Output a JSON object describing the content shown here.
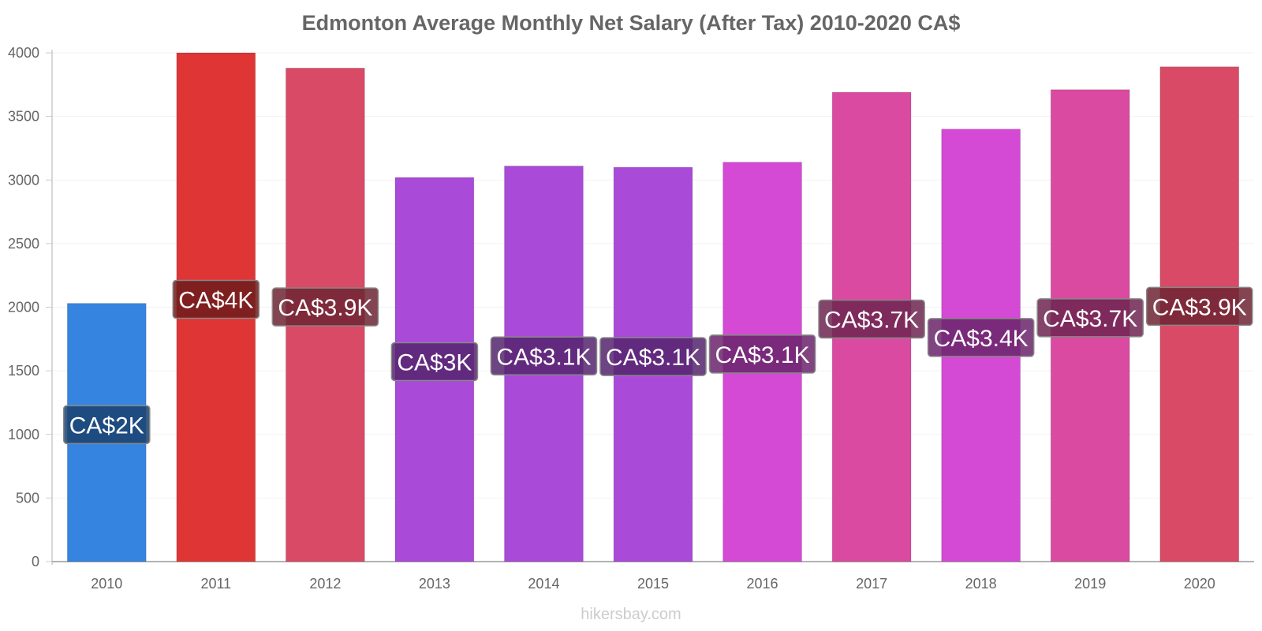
{
  "chart_data": {
    "type": "bar",
    "title": "Edmonton Average Monthly Net Salary (After Tax) 2010-2020 CA$",
    "xlabel": "",
    "ylabel": "",
    "categories": [
      "2010",
      "2011",
      "2012",
      "2013",
      "2014",
      "2015",
      "2016",
      "2017",
      "2018",
      "2019",
      "2020"
    ],
    "values": [
      2030,
      4000,
      3880,
      3020,
      3110,
      3100,
      3140,
      3690,
      3400,
      3710,
      3890
    ],
    "data_labels": [
      "CA$2K",
      "CA$4K",
      "CA$3.9K",
      "CA$3K",
      "CA$3.1K",
      "CA$3.1K",
      "CA$3.1K",
      "CA$3.7K",
      "CA$3.4K",
      "CA$3.7K",
      "CA$3.9K"
    ],
    "colors": [
      "#3584e0",
      "#e03535",
      "#d94a66",
      "#a94ad9",
      "#a94ad9",
      "#a94ad9",
      "#d44ad4",
      "#d94aa0",
      "#d44ad4",
      "#d94aa0",
      "#d94a66"
    ],
    "label_box_colors": [
      "#1b426e",
      "#6e1b1b",
      "#6d2533",
      "#55256d",
      "#55256d",
      "#55256d",
      "#6a256a",
      "#6d2550",
      "#6a256a",
      "#6d2550",
      "#6d2533"
    ],
    "ylim": [
      0,
      4000
    ],
    "yticks": [
      0,
      500,
      1000,
      1500,
      2000,
      2500,
      3000,
      3500,
      4000
    ],
    "grid": true,
    "legend": "none"
  },
  "watermark": "hikersbay.com"
}
